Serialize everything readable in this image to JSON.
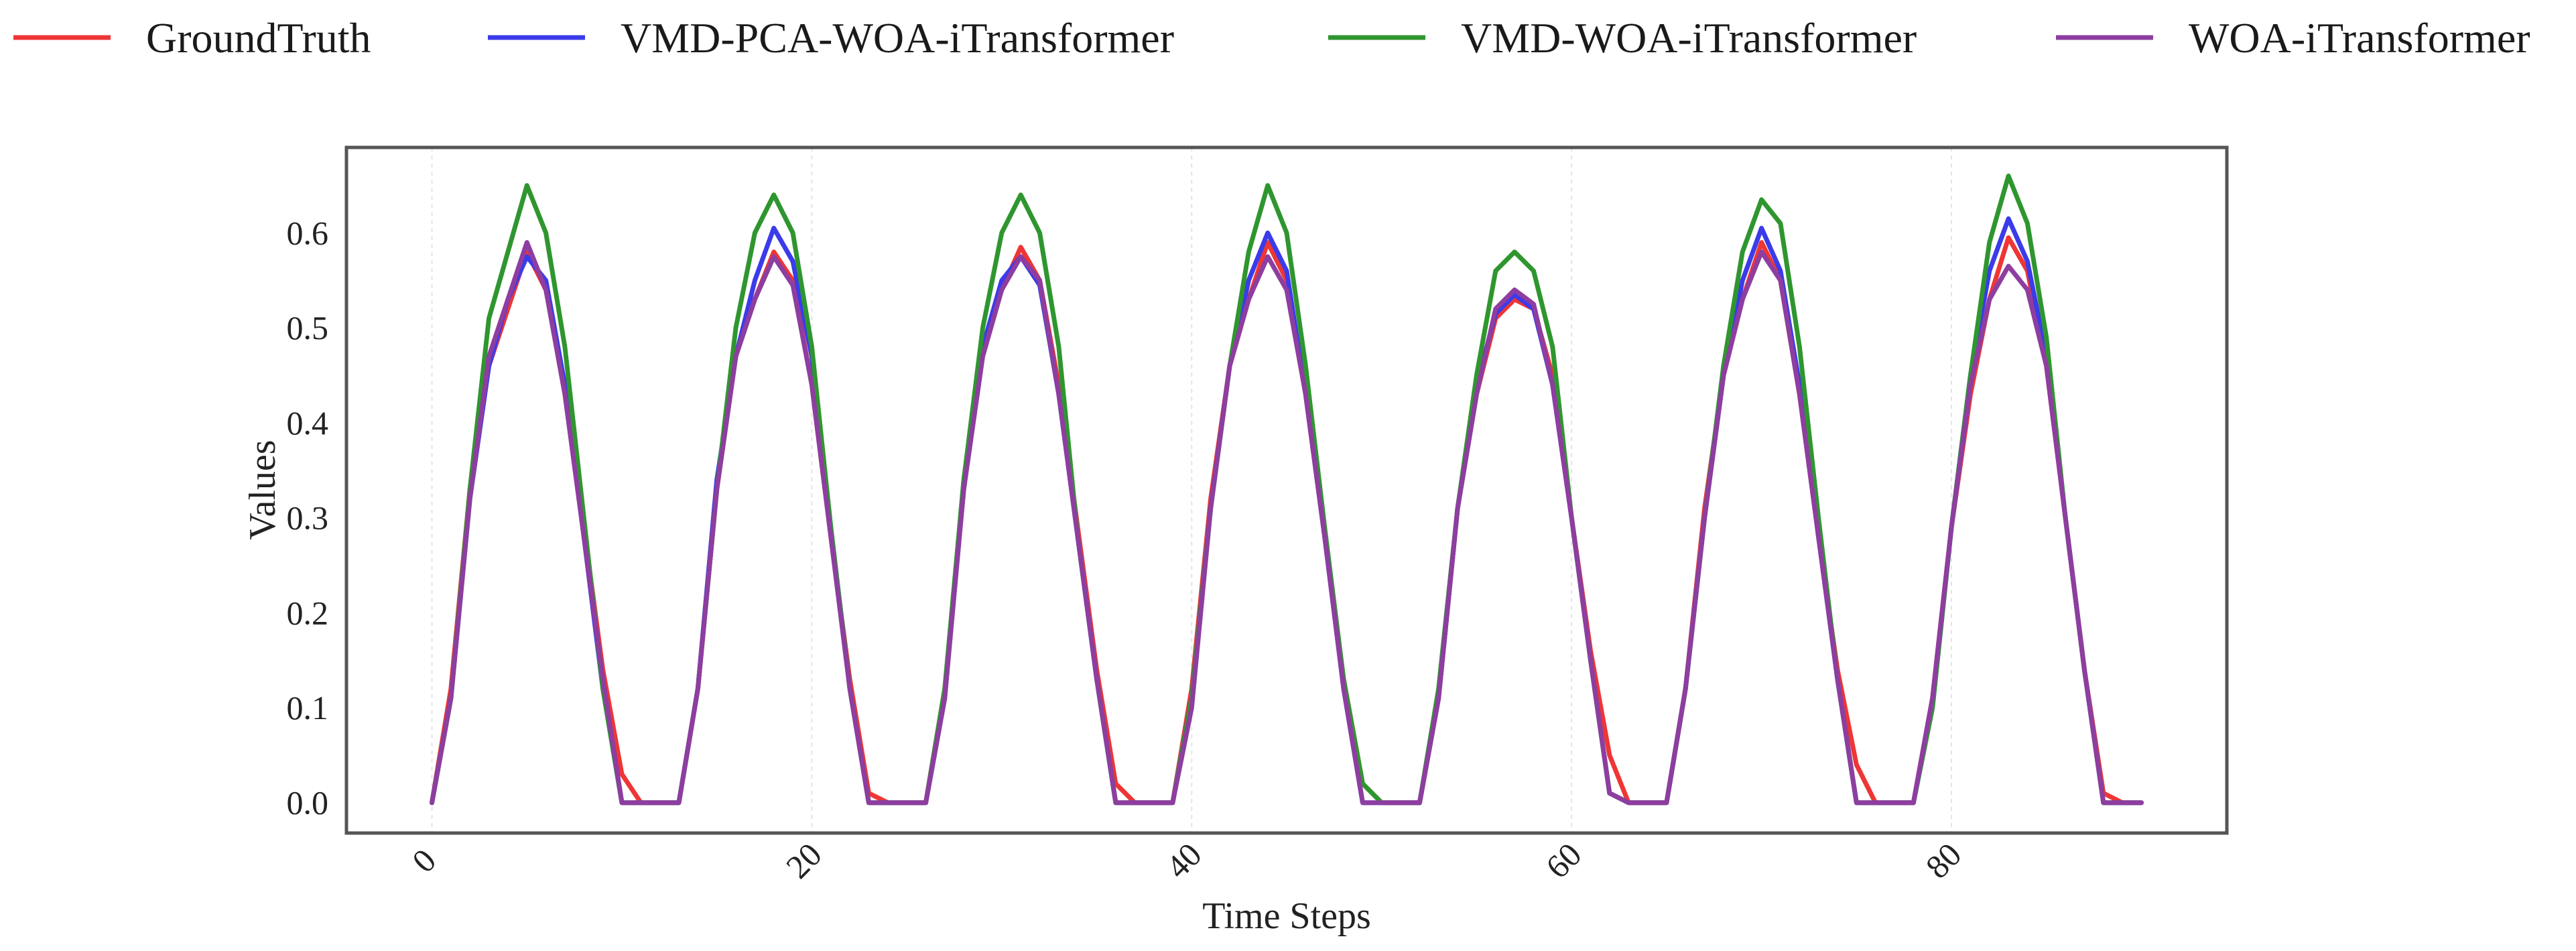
{
  "chart_data": {
    "type": "line",
    "title": "",
    "xlabel": "Time Steps",
    "ylabel": "Values",
    "xlim": [
      -4.5,
      94.5
    ],
    "ylim": [
      -0.032,
      0.69
    ],
    "xticks": [
      0,
      20,
      40,
      60,
      80
    ],
    "yticks": [
      0.0,
      0.1,
      0.2,
      0.3,
      0.4,
      0.5,
      0.6
    ],
    "x": [
      0,
      1,
      2,
      3,
      4,
      5,
      6,
      7,
      8,
      9,
      10,
      11,
      12,
      13,
      14,
      15,
      16,
      17,
      18,
      19,
      20,
      21,
      22,
      23,
      24,
      25,
      26,
      27,
      28,
      29,
      30,
      31,
      32,
      33,
      34,
      35,
      36,
      37,
      38,
      39,
      40,
      41,
      42,
      43,
      44,
      45,
      46,
      47,
      48,
      49,
      50,
      51,
      52,
      53,
      54,
      55,
      56,
      57,
      58,
      59,
      60,
      61,
      62,
      63,
      64,
      65,
      66,
      67,
      68,
      69,
      70,
      71,
      72,
      73,
      74,
      75,
      76,
      77,
      78,
      79,
      80,
      81,
      82,
      83,
      84,
      85,
      86,
      87,
      88,
      89,
      90
    ],
    "grid": true,
    "legend_position": "top",
    "series": [
      {
        "name": "GroundTruth",
        "color": "#ef3535",
        "values": [
          0.0,
          0.12,
          0.33,
          0.46,
          0.52,
          0.58,
          0.54,
          0.44,
          0.29,
          0.14,
          0.03,
          0.0,
          0.0,
          0.0,
          0.12,
          0.33,
          0.47,
          0.53,
          0.58,
          0.55,
          0.44,
          0.28,
          0.13,
          0.01,
          0.0,
          0.0,
          0.0,
          0.12,
          0.33,
          0.48,
          0.54,
          0.585,
          0.55,
          0.44,
          0.29,
          0.14,
          0.02,
          0.0,
          0.0,
          0.0,
          0.12,
          0.32,
          0.46,
          0.53,
          0.59,
          0.55,
          0.43,
          0.28,
          0.13,
          0.02,
          0.0,
          0.0,
          0.0,
          0.11,
          0.31,
          0.43,
          0.51,
          0.53,
          0.52,
          0.45,
          0.3,
          0.16,
          0.05,
          0.0,
          0.0,
          0.0,
          0.12,
          0.31,
          0.45,
          0.53,
          0.59,
          0.55,
          0.43,
          0.28,
          0.14,
          0.04,
          0.0,
          0.0,
          0.0,
          0.11,
          0.29,
          0.43,
          0.53,
          0.595,
          0.56,
          0.46,
          0.3,
          0.14,
          0.01,
          0.0,
          0.0
        ]
      },
      {
        "name": "VMD-PCA-WOA-iTransformer",
        "color": "#3b3bea",
        "values": [
          0.0,
          0.11,
          0.32,
          0.46,
          0.53,
          0.575,
          0.55,
          0.44,
          0.28,
          0.12,
          0.0,
          0.0,
          0.0,
          0.0,
          0.12,
          0.34,
          0.47,
          0.55,
          0.605,
          0.57,
          0.47,
          0.29,
          0.12,
          0.0,
          0.0,
          0.0,
          0.0,
          0.11,
          0.34,
          0.48,
          0.55,
          0.575,
          0.545,
          0.43,
          0.28,
          0.13,
          0.0,
          0.0,
          0.0,
          0.0,
          0.11,
          0.31,
          0.46,
          0.55,
          0.6,
          0.56,
          0.43,
          0.28,
          0.12,
          0.0,
          0.0,
          0.0,
          0.0,
          0.11,
          0.31,
          0.44,
          0.515,
          0.535,
          0.52,
          0.44,
          0.3,
          0.15,
          0.01,
          0.0,
          0.0,
          0.0,
          0.12,
          0.3,
          0.45,
          0.55,
          0.605,
          0.56,
          0.44,
          0.28,
          0.13,
          0.0,
          0.0,
          0.0,
          0.0,
          0.1,
          0.29,
          0.45,
          0.56,
          0.615,
          0.57,
          0.47,
          0.3,
          0.14,
          0.0,
          0.0,
          0.0
        ]
      },
      {
        "name": "VMD-WOA-iTransformer",
        "color": "#2f962f",
        "values": [
          0.0,
          0.11,
          0.33,
          0.51,
          0.58,
          0.65,
          0.6,
          0.48,
          0.3,
          0.12,
          0.0,
          0.0,
          0.0,
          0.0,
          0.12,
          0.33,
          0.5,
          0.6,
          0.64,
          0.6,
          0.48,
          0.29,
          0.12,
          0.0,
          0.0,
          0.0,
          0.0,
          0.12,
          0.34,
          0.5,
          0.6,
          0.64,
          0.6,
          0.48,
          0.28,
          0.13,
          0.0,
          0.0,
          0.0,
          0.0,
          0.11,
          0.31,
          0.46,
          0.58,
          0.65,
          0.6,
          0.46,
          0.29,
          0.13,
          0.02,
          0.0,
          0.0,
          0.0,
          0.12,
          0.31,
          0.45,
          0.56,
          0.58,
          0.56,
          0.48,
          0.3,
          0.15,
          0.01,
          0.0,
          0.0,
          0.0,
          0.12,
          0.3,
          0.46,
          0.58,
          0.635,
          0.61,
          0.48,
          0.3,
          0.13,
          0.0,
          0.0,
          0.0,
          0.0,
          0.1,
          0.29,
          0.45,
          0.59,
          0.66,
          0.61,
          0.49,
          0.3,
          0.14,
          0.0,
          0.0,
          0.0
        ]
      },
      {
        "name": "WOA-iTransformer",
        "color": "#8e3da0",
        "values": [
          0.0,
          0.11,
          0.32,
          0.47,
          0.53,
          0.59,
          0.54,
          0.43,
          0.28,
          0.13,
          0.0,
          0.0,
          0.0,
          0.0,
          0.12,
          0.33,
          0.47,
          0.53,
          0.575,
          0.545,
          0.44,
          0.28,
          0.12,
          0.0,
          0.0,
          0.0,
          0.0,
          0.11,
          0.33,
          0.47,
          0.54,
          0.575,
          0.55,
          0.43,
          0.28,
          0.13,
          0.0,
          0.0,
          0.0,
          0.0,
          0.1,
          0.31,
          0.46,
          0.53,
          0.575,
          0.54,
          0.43,
          0.28,
          0.12,
          0.0,
          0.0,
          0.0,
          0.0,
          0.11,
          0.31,
          0.43,
          0.52,
          0.54,
          0.525,
          0.44,
          0.3,
          0.15,
          0.01,
          0.0,
          0.0,
          0.0,
          0.12,
          0.3,
          0.45,
          0.53,
          0.58,
          0.55,
          0.43,
          0.28,
          0.13,
          0.0,
          0.0,
          0.0,
          0.0,
          0.11,
          0.29,
          0.44,
          0.53,
          0.565,
          0.54,
          0.46,
          0.3,
          0.14,
          0.0,
          0.0,
          0.0
        ]
      }
    ]
  }
}
